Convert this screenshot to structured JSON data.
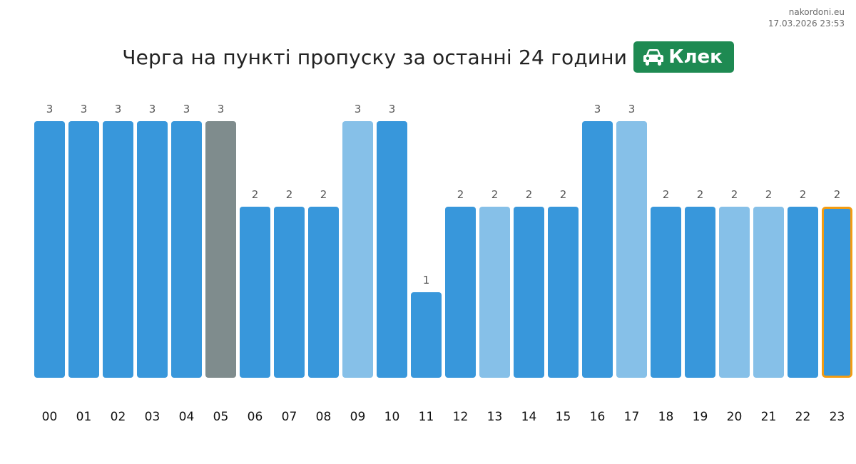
{
  "site": {
    "domain": "nakordoni.eu",
    "timestamp": "17.03.2026 23:53"
  },
  "header": {
    "title": "Черга на пункті пропуску за останні 24 години",
    "checkpoint_label": "Клек",
    "checkpoint_icon": "car-icon",
    "badge_color": "#1e8a52"
  },
  "colors": {
    "bar_default": "#3897db",
    "bar_light": "#86c0e8",
    "bar_gray": "#7f8c8d",
    "highlight_border": "#f39c12",
    "value_label": "#555555",
    "hour_label": "#111111"
  },
  "chart_data": {
    "type": "bar",
    "title": "Черга на пункті пропуску за останні 24 години",
    "xlabel": "",
    "ylabel": "",
    "ylim": [
      0,
      3
    ],
    "grid": false,
    "categories": [
      "00",
      "01",
      "02",
      "03",
      "04",
      "05",
      "06",
      "07",
      "08",
      "09",
      "10",
      "11",
      "12",
      "13",
      "14",
      "15",
      "16",
      "17",
      "18",
      "19",
      "20",
      "21",
      "22",
      "23"
    ],
    "values": [
      3,
      3,
      3,
      3,
      3,
      3,
      2,
      2,
      2,
      3,
      3,
      1,
      2,
      2,
      2,
      2,
      3,
      3,
      2,
      2,
      2,
      2,
      2,
      2
    ],
    "bar_styles": [
      "default",
      "default",
      "default",
      "default",
      "default",
      "gray",
      "default",
      "default",
      "default",
      "light",
      "default",
      "default",
      "default",
      "light",
      "default",
      "default",
      "default",
      "light",
      "default",
      "default",
      "light",
      "light",
      "default",
      "default"
    ],
    "highlighted_index": 23
  }
}
